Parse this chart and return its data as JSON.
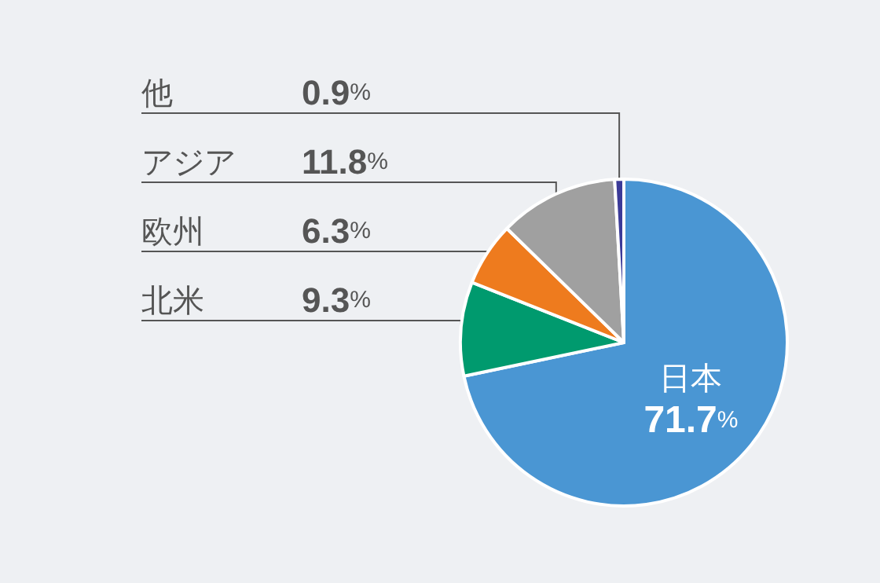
{
  "chart_data": {
    "type": "pie",
    "categories": [
      "日本",
      "北米",
      "欧州",
      "アジア",
      "他"
    ],
    "values": [
      71.7,
      9.3,
      6.3,
      11.8,
      0.9
    ],
    "colors": [
      "#4a96d3",
      "#009a6e",
      "#ee7b1e",
      "#a0a0a0",
      "#3b3a98"
    ],
    "value_labels": [
      "71.7%",
      "9.3%",
      "6.3%",
      "11.8%",
      "0.9%"
    ],
    "legend": false
  }
}
